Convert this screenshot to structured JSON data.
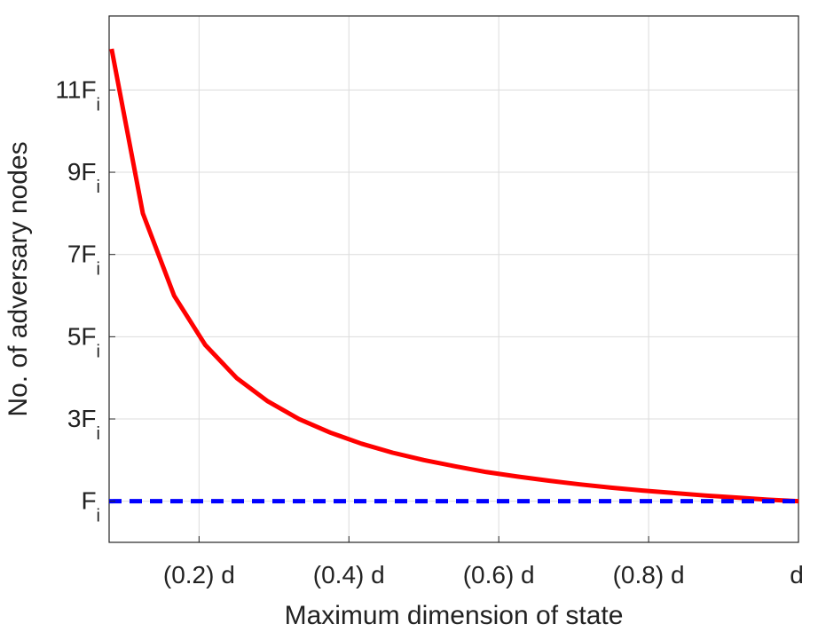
{
  "chart_data": {
    "type": "line",
    "title": "",
    "xlabel": "Maximum dimension of state",
    "ylabel": "No. of adversary nodes",
    "xlim": [
      0.08,
      1.0
    ],
    "ylim": [
      0,
      12.8
    ],
    "grid": true,
    "legend": "none",
    "x_ticks": [
      {
        "value": 0.2,
        "label": "(0.2) d"
      },
      {
        "value": 0.4,
        "label": "(0.4) d"
      },
      {
        "value": 0.6,
        "label": "(0.6) d"
      },
      {
        "value": 0.8,
        "label": "(0.8) d"
      },
      {
        "value": 1.0,
        "label": "d"
      }
    ],
    "y_ticks": [
      {
        "value": 1,
        "main": "F",
        "sub": "i"
      },
      {
        "value": 3,
        "main": "3F",
        "sub": "i"
      },
      {
        "value": 5,
        "main": "5F",
        "sub": "i"
      },
      {
        "value": 7,
        "main": "7F",
        "sub": "i"
      },
      {
        "value": 9,
        "main": "9F",
        "sub": "i"
      },
      {
        "value": 11,
        "main": "11F",
        "sub": "i"
      }
    ],
    "series": [
      {
        "color": "#ff0000",
        "style": "solid",
        "x": [
          0.0833,
          0.125,
          0.1667,
          0.2083,
          0.25,
          0.2917,
          0.3333,
          0.375,
          0.4167,
          0.4583,
          0.5,
          0.5417,
          0.5833,
          0.625,
          0.6667,
          0.7083,
          0.75,
          0.7917,
          0.8333,
          0.875,
          0.9167,
          0.9583,
          1.0
        ],
        "y": [
          12.0,
          8.0,
          6.0,
          4.8,
          4.0,
          3.43,
          3.0,
          2.67,
          2.4,
          2.18,
          2.0,
          1.85,
          1.71,
          1.6,
          1.5,
          1.41,
          1.33,
          1.26,
          1.2,
          1.14,
          1.09,
          1.04,
          1.0
        ]
      },
      {
        "color": "#0000ff",
        "style": "dashed",
        "x": [
          0.08,
          1.0
        ],
        "y": [
          1.0,
          1.0
        ]
      }
    ]
  }
}
